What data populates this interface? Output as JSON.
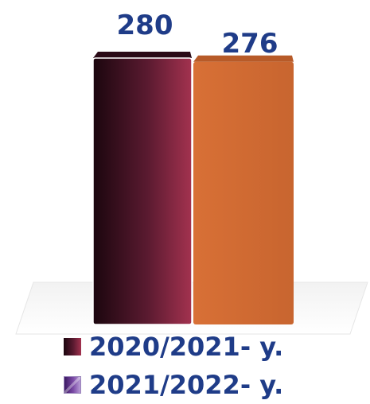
{
  "chart_data": {
    "type": "bar",
    "categories": [
      "2020/2021- y.",
      "2021/2022- y."
    ],
    "series": [
      {
        "name": "2020/2021- y.",
        "values": [
          280,
          null
        ]
      },
      {
        "name": "2021/2022- y.",
        "values": [
          null,
          276
        ]
      }
    ],
    "data_labels": [
      "280",
      "276"
    ],
    "ylim": [
      0,
      280
    ],
    "grid": false,
    "legend_position": "bottom",
    "colors": {
      "bar_1_dark": "#1b060e",
      "bar_1_light": "#a3324f",
      "bar_2": "#d2692f",
      "label_text": "#1f3c88"
    }
  },
  "legend": {
    "items": [
      {
        "label": "2020/2021- y.",
        "swatch": "gradient-maroon-square"
      },
      {
        "label": "2021/2022- y.",
        "swatch": "gradient-purple-square"
      }
    ]
  }
}
